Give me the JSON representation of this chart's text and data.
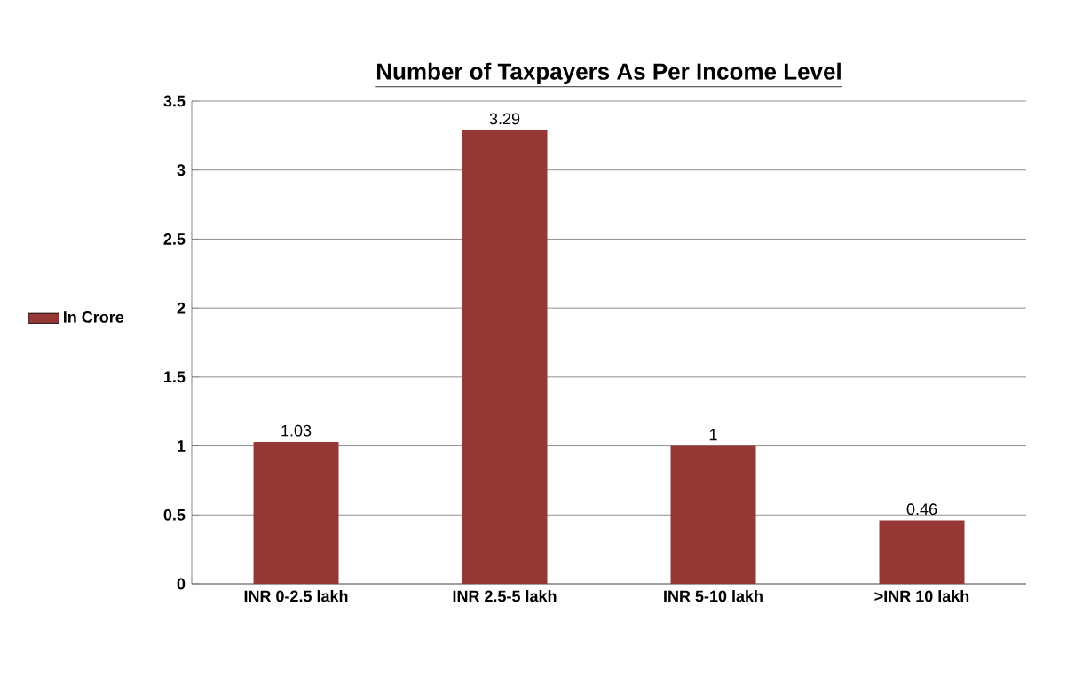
{
  "chart_data": {
    "type": "bar",
    "title": "Number of Taxpayers As Per Income Level",
    "categories": [
      "INR 0-2.5 lakh",
      "INR 2.5-5 lakh",
      "INR 5-10 lakh",
      ">INR 10 lakh"
    ],
    "series": [
      {
        "name": "In Crore",
        "color": "#953735",
        "values": [
          1.03,
          3.29,
          1,
          0.46
        ]
      }
    ],
    "ylim": [
      0,
      3.5
    ],
    "yticks": [
      0,
      0.5,
      1,
      1.5,
      2,
      2.5,
      3,
      3.5
    ],
    "grid": "y",
    "legend": "left",
    "data_labels": true
  }
}
